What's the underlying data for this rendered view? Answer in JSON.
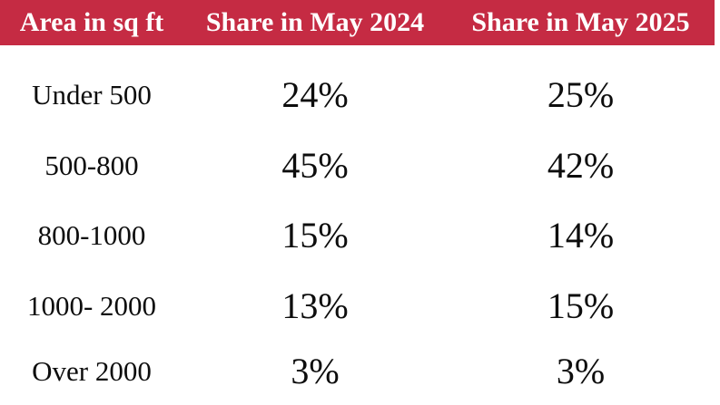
{
  "table": {
    "headers": [
      "Area in sq ft",
      "Share in May 2024",
      "Share in May 2025"
    ],
    "rows": [
      [
        "Under 500",
        "24%",
        "25%"
      ],
      [
        "500-800",
        "45%",
        "42%"
      ],
      [
        "800-1000",
        "15%",
        "14%"
      ],
      [
        "1000- 2000",
        "13%",
        "15%"
      ],
      [
        "Over 2000",
        "3%",
        "3%"
      ]
    ]
  },
  "colors": {
    "header_background": "#c52b43",
    "header_text": "#ffffff",
    "body_text": "#0d0d0d"
  }
}
